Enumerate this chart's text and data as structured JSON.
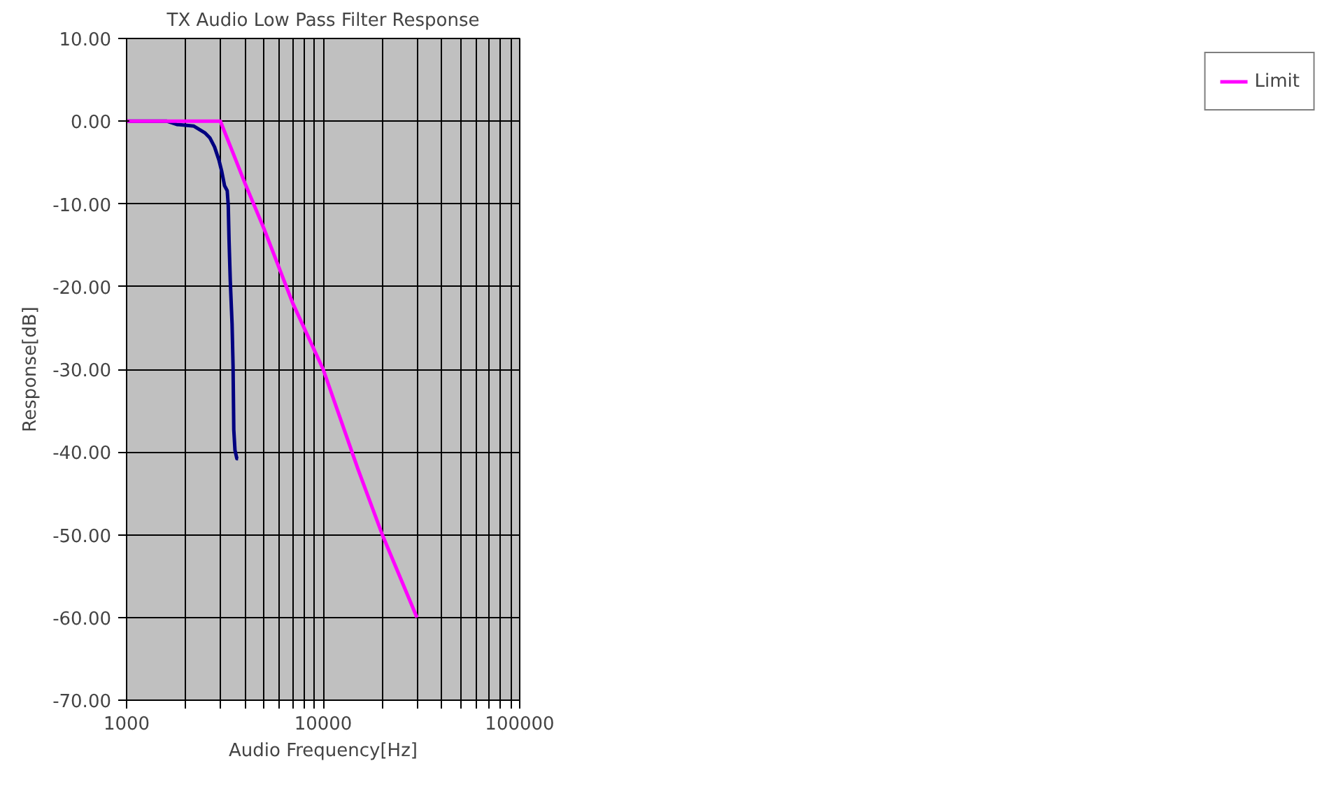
{
  "chart_data": {
    "type": "line",
    "title": "TX Audio Low Pass Filter Response",
    "xlabel": "Audio Frequency[Hz]",
    "ylabel": "Response[dB]",
    "log": "x",
    "grid": true,
    "legend": "right",
    "line_style": "solid",
    "marker": "none",
    "xlim": [
      1000,
      100000
    ],
    "ylim": [
      -70,
      10
    ],
    "xticks": [
      1000,
      {
        "value": 2000,
        "label": null
      },
      {
        "value": 3000,
        "label": null
      },
      {
        "value": 4000,
        "label": null
      },
      {
        "value": 5000,
        "label": null
      },
      {
        "value": 6000,
        "label": null
      },
      {
        "value": 7000,
        "label": null
      },
      {
        "value": 8000,
        "label": null
      },
      {
        "value": 9000,
        "label": null
      },
      10000,
      {
        "value": 20000,
        "label": null
      },
      {
        "value": 30000,
        "label": null
      },
      {
        "value": 40000,
        "label": null
      },
      {
        "value": 50000,
        "label": null
      },
      {
        "value": 60000,
        "label": null
      },
      {
        "value": 70000,
        "label": null
      },
      {
        "value": 80000,
        "label": null
      },
      {
        "value": 90000,
        "label": null
      },
      100000
    ],
    "yticks": [
      {
        "value": 10,
        "label": "10.00"
      },
      {
        "value": 0,
        "label": "0.00"
      },
      {
        "value": -10,
        "label": "-10.00"
      },
      {
        "value": -20,
        "label": "-20.00"
      },
      {
        "value": -30,
        "label": "-30.00"
      },
      {
        "value": -40,
        "label": "-40.00"
      },
      {
        "value": -50,
        "label": "-50.00"
      },
      {
        "value": -60,
        "label": "-60.00"
      },
      {
        "value": -70,
        "label": "-70.00"
      }
    ],
    "series": [
      {
        "color": "#000080",
        "x": [
          1000,
          1600,
          1800,
          2200,
          2500,
          2650,
          2800,
          2950,
          3050,
          3150,
          3250,
          3290,
          3320,
          3370,
          3440,
          3480,
          3510,
          3560,
          3640,
          3690
        ],
        "values": [
          0,
          0,
          -0.4,
          -0.6,
          -1.4,
          -2,
          -3.1,
          -4.7,
          -6.1,
          -7.8,
          -8.4,
          -10.2,
          -14.3,
          -19.4,
          -24.5,
          -29.6,
          -37.3,
          -39.8,
          -40.8,
          -40.8
        ]
      },
      {
        "name": "Limit",
        "color": "#ff00ff",
        "x": [
          1000,
          3000,
          3500,
          4000,
          5000,
          7000,
          10000,
          15000,
          20000,
          30000
        ],
        "values": [
          0,
          0,
          -4,
          -7.5,
          -13,
          -22,
          -30,
          -42,
          -50,
          -60
        ]
      }
    ]
  }
}
